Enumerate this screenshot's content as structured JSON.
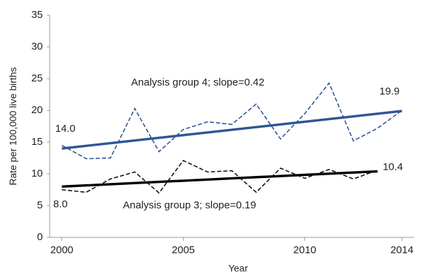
{
  "chart_data": {
    "type": "line",
    "x_label": "Year",
    "y_label": "Rate per 100,000 live births",
    "xlim": [
      1999.5,
      2014.5
    ],
    "xticks": [
      2000,
      2005,
      2010,
      2014
    ],
    "ylim": [
      0,
      35
    ],
    "yticks": [
      0,
      5,
      10,
      15,
      20,
      25,
      30,
      35
    ],
    "series": [
      {
        "color": "#2f5597",
        "style": "dashed",
        "x": [
          2000,
          2001,
          2002,
          2003,
          2004,
          2005,
          2006,
          2007,
          2008,
          2009,
          2010,
          2011,
          2012,
          2013,
          2014
        ],
        "values": [
          14.5,
          12.4,
          12.5,
          20.3,
          13.5,
          17.0,
          18.2,
          17.8,
          21.0,
          15.5,
          19.5,
          24.3,
          15.2,
          17.2,
          20.0
        ]
      },
      {
        "color": "#111111",
        "style": "dashed",
        "x": [
          2000,
          2001,
          2002,
          2003,
          2004,
          2005,
          2006,
          2007,
          2008,
          2009,
          2010,
          2011,
          2012,
          2013
        ],
        "values": [
          7.5,
          7.1,
          9.2,
          10.3,
          7.0,
          12.1,
          10.3,
          10.5,
          7.1,
          10.9,
          9.3,
          10.7,
          9.2,
          10.6
        ]
      },
      {
        "name": "Analysis group 4; slope=0.42",
        "color": "#2f5597",
        "style": "solid",
        "x": [
          2000,
          2014
        ],
        "values": [
          14.0,
          19.9
        ],
        "value_labels": [
          "14.0",
          "19.9"
        ]
      },
      {
        "name": "Analysis group 3; slope=0.19",
        "color": "#000000",
        "style": "solid",
        "x": [
          2000,
          2013
        ],
        "values": [
          8.0,
          10.4
        ],
        "value_labels": [
          "8.0",
          "10.4"
        ]
      }
    ]
  }
}
